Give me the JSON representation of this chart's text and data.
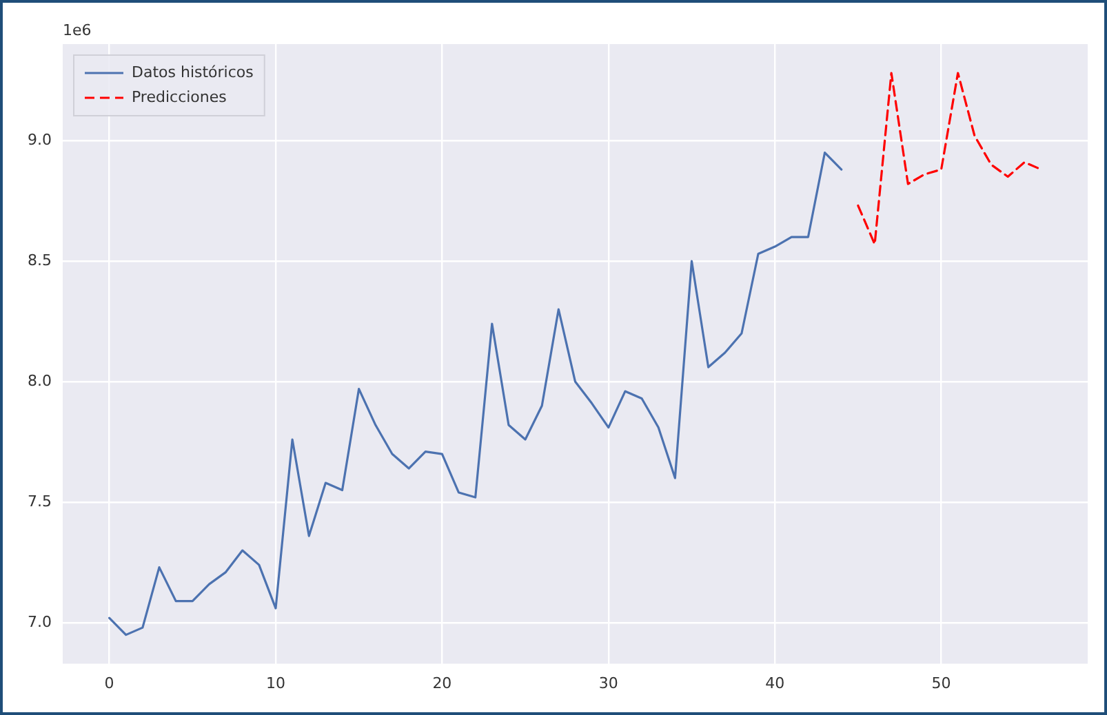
{
  "chart_data": {
    "type": "line",
    "legend": "top left",
    "grid": true,
    "marker": "none",
    "annotations": [
      "1e6"
    ],
    "xlim": [
      -2.8,
      58.8
    ],
    "xticks": [
      0,
      10,
      20,
      30,
      40,
      50
    ],
    "ylim": [
      6.83,
      9.4
    ],
    "yticks": [
      {
        "value": 7,
        "label": "7.0"
      },
      {
        "value": 7.5,
        "label": "7.5"
      },
      {
        "value": 8,
        "label": "8.0"
      },
      {
        "value": 8.5,
        "label": "8.5"
      },
      {
        "value": 9,
        "label": "9.0"
      }
    ],
    "series": [
      {
        "name": "Datos históricos",
        "color": "#4c72b0",
        "line_style": "solid",
        "x": [
          0,
          1,
          2,
          3,
          4,
          5,
          6,
          7,
          8,
          9,
          10,
          11,
          12,
          13,
          14,
          15,
          16,
          17,
          18,
          19,
          20,
          21,
          22,
          23,
          24,
          25,
          26,
          27,
          28,
          29,
          30,
          31,
          32,
          33,
          34,
          35,
          36,
          37,
          38,
          39,
          40,
          41,
          42,
          43,
          44
        ],
        "values": [
          7.02,
          6.95,
          6.98,
          7.23,
          7.09,
          7.09,
          7.16,
          7.21,
          7.3,
          7.24,
          7.06,
          7.76,
          7.36,
          7.58,
          7.55,
          7.97,
          7.82,
          7.7,
          7.64,
          7.71,
          7.7,
          7.54,
          7.52,
          8.24,
          7.82,
          7.76,
          7.9,
          8.3,
          8.0,
          7.91,
          7.81,
          7.96,
          7.93,
          7.81,
          7.6,
          8.5,
          8.06,
          8.12,
          8.2,
          8.53,
          8.56,
          8.6,
          8.6,
          8.95,
          8.88
        ]
      },
      {
        "name": "Predicciones",
        "color": "#ff0000",
        "line_style": "dashed",
        "x": [
          45,
          46,
          47,
          48,
          49,
          50,
          51,
          52,
          53,
          54,
          55,
          56
        ],
        "values": [
          8.73,
          8.57,
          9.28,
          8.82,
          8.86,
          8.88,
          9.28,
          9.02,
          8.9,
          8.85,
          8.91,
          8.88
        ]
      }
    ]
  }
}
